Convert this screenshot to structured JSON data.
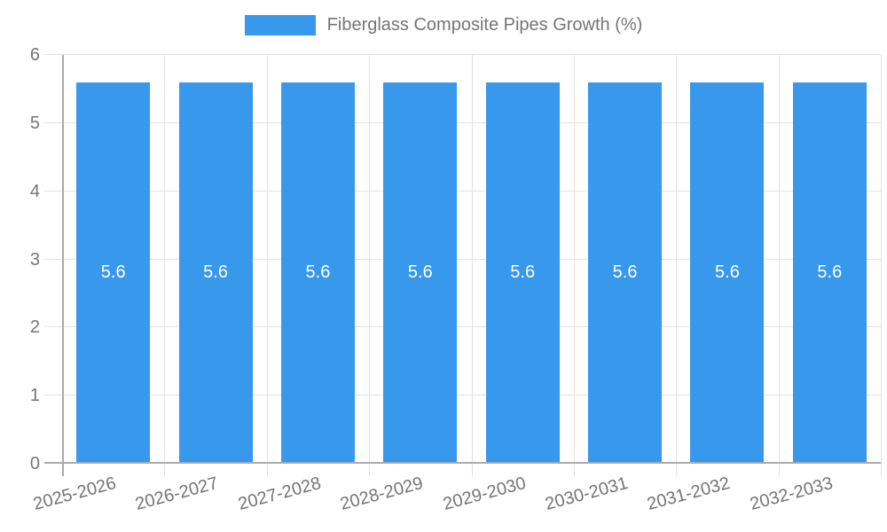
{
  "chart_data": {
    "type": "bar",
    "title": "Fiberglass Composite Pipes Growth (%)",
    "categories": [
      "2025-2026",
      "2026-2027",
      "2027-2028",
      "2028-2029",
      "2029-2030",
      "2030-2031",
      "2031-2032",
      "2032-2033"
    ],
    "values": [
      5.6,
      5.6,
      5.6,
      5.6,
      5.6,
      5.6,
      5.6,
      5.6
    ],
    "value_labels": [
      "5.6",
      "5.6",
      "5.6",
      "5.6",
      "5.6",
      "5.6",
      "5.6",
      "5.6"
    ],
    "xlabel": "",
    "ylabel": "",
    "ylim": [
      0,
      6
    ],
    "yticks": [
      0,
      1,
      2,
      3,
      4,
      5,
      6
    ],
    "grid": true,
    "legend_position": "top-center",
    "bar_color": "#3898EC",
    "bar_label_color": "#ffffff",
    "axis_text_color": "#757575",
    "grid_color": "#e2e2e2",
    "axis_line_color": "#aaaaaa"
  }
}
